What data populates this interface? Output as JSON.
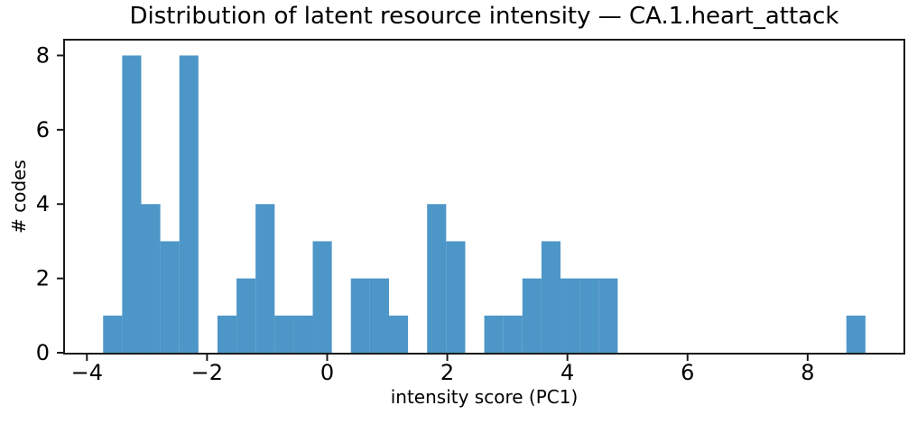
{
  "chart_data": {
    "type": "bar",
    "subtype": "histogram",
    "title": "Distribution of latent resource intensity — CA.1.heart_attack",
    "xlabel": "intensity score (PC1)",
    "ylabel": "# codes",
    "bin_start": -3.73,
    "bin_width": 0.3173,
    "num_bins": 40,
    "counts": [
      1,
      8,
      4,
      3,
      8,
      0,
      1,
      2,
      4,
      1,
      1,
      3,
      0,
      2,
      2,
      1,
      0,
      4,
      3,
      0,
      1,
      1,
      2,
      3,
      2,
      2,
      2,
      0,
      0,
      0,
      0,
      0,
      0,
      0,
      0,
      0,
      0,
      0,
      0,
      1
    ],
    "xticks": [
      -4,
      -2,
      0,
      2,
      4,
      6,
      8
    ],
    "yticks": [
      0,
      2,
      4,
      6,
      8
    ],
    "xlim": [
      -4.365,
      9.595
    ],
    "ylim": [
      0,
      8.4
    ],
    "bar_color": "#4d96c8",
    "axis_color": "#1a1a1a",
    "grid": false,
    "legend": null
  }
}
